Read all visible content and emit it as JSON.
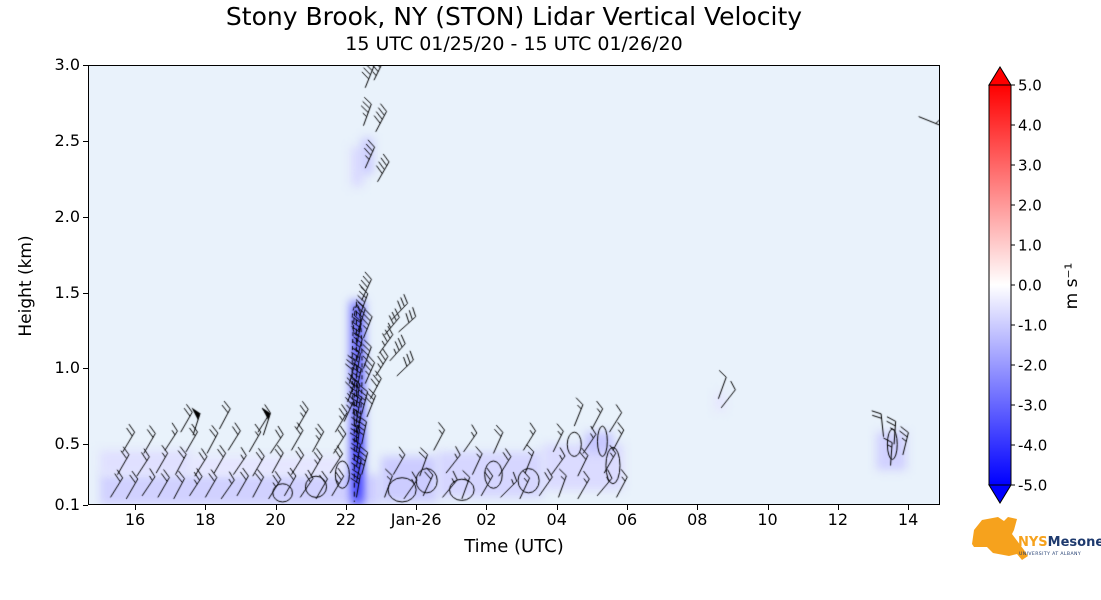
{
  "title": "Stony Brook, NY (STON) Lidar Vertical Velocity",
  "subtitle": "15 UTC 01/25/20 - 15 UTC 01/26/20",
  "chart_data": {
    "type": "heatmap",
    "title": "Stony Brook, NY (STON) Lidar Vertical Velocity",
    "subtitle": "15 UTC 01/25/20 - 15 UTC 01/26/20",
    "xlabel": "Time (UTC)",
    "ylabel": "Height (km)",
    "x_tick_hours": [
      1,
      3,
      5,
      7,
      9,
      11,
      13,
      15,
      17,
      19,
      21,
      23
    ],
    "x_tick_labels": [
      "16",
      "18",
      "20",
      "22",
      "Jan-26",
      "02",
      "04",
      "06",
      "08",
      "10",
      "12",
      "14"
    ],
    "xlim_hours_after_start": [
      -0.34,
      23.9
    ],
    "y_ticks": [
      0.1,
      0.5,
      1.0,
      1.5,
      2.0,
      2.5,
      3.0
    ],
    "y_tick_labels": [
      "0.1",
      "0.5",
      "1.0",
      "1.5",
      "2.0",
      "2.5",
      "3.0"
    ],
    "ylim": [
      0.1,
      3.0
    ],
    "plot_bg_color": "#e9f2fb",
    "background_velocity_ms": -0.3,
    "colorbar": {
      "label": "m s⁻¹",
      "ticks": [
        5,
        4,
        3,
        2,
        1,
        0,
        -1,
        -2,
        -3,
        -4,
        -5
      ],
      "tick_labels": [
        "5.0",
        "4.0",
        "3.0",
        "2.0",
        "1.0",
        "0.0",
        "-1.0",
        "-2.0",
        "-3.0",
        "-4.0",
        "-5.0"
      ],
      "min": -5.0,
      "max": 5.0,
      "colors": {
        "positive": "#ff0000",
        "zero": "#ffffff",
        "negative": "#0000ff"
      }
    },
    "velocity_patches": {
      "format": [
        "t_start_hours_after_15utc",
        "t_end",
        "height_start_km",
        "height_end_km",
        "velocity_ms"
      ],
      "regions": [
        [
          0.0,
          8.0,
          0.1,
          0.3,
          -0.9
        ],
        [
          0.0,
          2.6,
          0.3,
          0.46,
          -0.6
        ],
        [
          2.6,
          7.0,
          0.3,
          0.42,
          -0.5
        ],
        [
          7.1,
          7.55,
          0.1,
          1.45,
          -2.0
        ],
        [
          7.25,
          7.42,
          0.1,
          1.4,
          -3.5
        ],
        [
          7.28,
          7.38,
          0.15,
          0.6,
          -4.8
        ],
        [
          7.15,
          7.5,
          2.2,
          2.46,
          -0.7
        ],
        [
          7.45,
          7.78,
          2.28,
          2.52,
          -1.0
        ],
        [
          8.0,
          9.6,
          0.12,
          0.42,
          -1.0
        ],
        [
          9.6,
          12.6,
          0.15,
          0.45,
          -0.8
        ],
        [
          12.6,
          14.9,
          0.2,
          0.5,
          -0.7
        ],
        [
          13.8,
          14.6,
          0.44,
          0.58,
          -1.1
        ],
        [
          17.5,
          17.8,
          0.72,
          0.84,
          -0.5
        ],
        [
          22.1,
          22.95,
          0.33,
          0.58,
          -0.9
        ]
      ]
    },
    "wind_barbs": {
      "format": [
        "t_hours_after_15utc",
        "height_km",
        "speed_kt",
        "staff_angle_deg_cw_from_up"
      ],
      "points": [
        [
          0.3,
          0.15,
          20,
          32
        ],
        [
          0.75,
          0.14,
          20,
          30
        ],
        [
          1.2,
          0.16,
          15,
          34
        ],
        [
          1.65,
          0.15,
          20,
          30
        ],
        [
          2.1,
          0.14,
          20,
          28
        ],
        [
          2.55,
          0.16,
          25,
          33
        ],
        [
          3.0,
          0.15,
          20,
          30
        ],
        [
          3.45,
          0.14,
          15,
          35
        ],
        [
          3.9,
          0.16,
          20,
          30
        ],
        [
          4.35,
          0.15,
          20,
          28
        ],
        [
          4.8,
          0.14,
          25,
          32
        ],
        [
          5.25,
          0.16,
          20,
          30
        ],
        [
          5.7,
          0.15,
          20,
          34
        ],
        [
          6.15,
          0.14,
          20,
          30
        ],
        [
          6.6,
          0.16,
          25,
          31
        ],
        [
          0.5,
          0.3,
          20,
          30
        ],
        [
          1.05,
          0.29,
          20,
          33
        ],
        [
          1.6,
          0.31,
          15,
          30
        ],
        [
          2.15,
          0.3,
          20,
          28
        ],
        [
          2.7,
          0.29,
          20,
          32
        ],
        [
          3.25,
          0.31,
          20,
          30
        ],
        [
          3.8,
          0.3,
          15,
          34
        ],
        [
          4.35,
          0.29,
          20,
          30
        ],
        [
          4.9,
          0.31,
          20,
          29
        ],
        [
          5.45,
          0.3,
          20,
          32
        ],
        [
          6.0,
          0.29,
          25,
          30
        ],
        [
          6.55,
          0.31,
          20,
          33
        ],
        [
          0.65,
          0.45,
          20,
          31
        ],
        [
          1.25,
          0.44,
          20,
          30
        ],
        [
          1.85,
          0.46,
          15,
          33
        ],
        [
          2.45,
          0.45,
          20,
          30
        ],
        [
          3.05,
          0.44,
          20,
          28
        ],
        [
          3.65,
          0.46,
          20,
          32
        ],
        [
          4.25,
          0.45,
          15,
          30
        ],
        [
          4.85,
          0.44,
          20,
          34
        ],
        [
          5.45,
          0.46,
          20,
          30
        ],
        [
          6.05,
          0.45,
          25,
          29
        ],
        [
          6.65,
          0.44,
          20,
          32
        ],
        [
          2.3,
          0.58,
          20,
          30
        ],
        [
          3.4,
          0.6,
          20,
          28
        ],
        [
          4.5,
          0.58,
          20,
          32
        ],
        [
          5.6,
          0.6,
          25,
          30
        ],
        [
          6.7,
          0.58,
          25,
          31
        ],
        [
          2.65,
          0.56,
          50,
          18
        ],
        [
          4.65,
          0.56,
          50,
          18
        ],
        [
          6.95,
          0.65,
          25,
          25
        ],
        [
          7.05,
          0.78,
          30,
          20
        ],
        [
          7.1,
          0.9,
          30,
          15
        ],
        [
          7.3,
          0.15,
          30,
          10
        ],
        [
          7.3,
          0.25,
          30,
          12
        ],
        [
          7.3,
          0.35,
          35,
          10
        ],
        [
          7.3,
          0.45,
          35,
          8
        ],
        [
          7.3,
          0.55,
          35,
          12
        ],
        [
          7.3,
          0.65,
          35,
          10
        ],
        [
          7.3,
          0.75,
          40,
          8
        ],
        [
          7.3,
          0.85,
          40,
          12
        ],
        [
          7.3,
          0.95,
          35,
          10
        ],
        [
          7.3,
          1.05,
          35,
          15
        ],
        [
          7.3,
          1.15,
          35,
          12
        ],
        [
          7.35,
          1.25,
          40,
          18
        ],
        [
          7.4,
          1.35,
          40,
          20
        ],
        [
          7.45,
          1.45,
          40,
          25
        ],
        [
          7.45,
          0.3,
          35,
          15
        ],
        [
          7.45,
          0.5,
          35,
          12
        ],
        [
          7.45,
          0.7,
          35,
          15
        ],
        [
          7.5,
          1.0,
          35,
          20
        ],
        [
          7.5,
          1.2,
          35,
          22
        ],
        [
          7.55,
          0.9,
          35,
          24
        ],
        [
          7.7,
          0.8,
          30,
          28
        ],
        [
          7.85,
          0.95,
          35,
          32
        ],
        [
          7.6,
          0.68,
          30,
          22
        ],
        [
          7.95,
          1.1,
          35,
          36
        ],
        [
          8.1,
          1.22,
          35,
          40
        ],
        [
          8.3,
          1.32,
          30,
          44
        ],
        [
          8.5,
          1.24,
          30,
          48
        ],
        [
          8.25,
          1.05,
          35,
          42
        ],
        [
          8.45,
          0.95,
          30,
          46
        ],
        [
          7.55,
          2.85,
          40,
          22
        ],
        [
          7.8,
          2.9,
          45,
          26
        ],
        [
          7.5,
          2.6,
          35,
          20
        ],
        [
          7.85,
          2.56,
          40,
          28
        ],
        [
          7.55,
          2.32,
          35,
          24
        ],
        [
          7.9,
          2.23,
          40,
          30
        ],
        [
          8.1,
          0.15,
          15,
          20
        ],
        [
          8.65,
          0.14,
          15,
          35
        ],
        [
          9.2,
          0.16,
          20,
          25
        ],
        [
          9.75,
          0.15,
          15,
          40
        ],
        [
          10.3,
          0.14,
          15,
          20
        ],
        [
          10.85,
          0.16,
          20,
          30
        ],
        [
          11.4,
          0.15,
          15,
          45
        ],
        [
          11.95,
          0.14,
          15,
          25
        ],
        [
          12.5,
          0.16,
          20,
          35
        ],
        [
          13.05,
          0.15,
          15,
          20
        ],
        [
          13.6,
          0.14,
          15,
          30
        ],
        [
          14.15,
          0.16,
          15,
          40
        ],
        [
          14.7,
          0.15,
          15,
          28
        ],
        [
          8.35,
          0.3,
          15,
          30
        ],
        [
          9.1,
          0.29,
          20,
          20
        ],
        [
          9.85,
          0.31,
          15,
          38
        ],
        [
          10.6,
          0.3,
          15,
          25
        ],
        [
          11.35,
          0.29,
          20,
          32
        ],
        [
          12.1,
          0.31,
          15,
          22
        ],
        [
          12.85,
          0.3,
          15,
          36
        ],
        [
          13.6,
          0.29,
          20,
          26
        ],
        [
          14.35,
          0.31,
          15,
          30
        ],
        [
          9.5,
          0.46,
          15,
          28
        ],
        [
          10.35,
          0.45,
          15,
          35
        ],
        [
          11.2,
          0.44,
          20,
          24
        ],
        [
          12.05,
          0.46,
          15,
          32
        ],
        [
          12.9,
          0.45,
          15,
          26
        ],
        [
          13.75,
          0.44,
          15,
          34
        ],
        [
          14.6,
          0.46,
          15,
          28
        ],
        [
          13.5,
          0.62,
          15,
          22
        ],
        [
          14.0,
          0.6,
          15,
          28
        ],
        [
          14.5,
          0.58,
          10,
          32
        ],
        [
          17.6,
          0.8,
          10,
          20
        ],
        [
          17.68,
          0.74,
          10,
          38
        ],
        [
          22.3,
          0.55,
          20,
          -6
        ],
        [
          22.6,
          0.5,
          25,
          4
        ],
        [
          22.85,
          0.43,
          25,
          14
        ],
        [
          22.5,
          0.36,
          15,
          4
        ],
        [
          23.3,
          2.66,
          5,
          112
        ]
      ]
    },
    "contours": {
      "ellipses_format": [
        "t_center",
        "h_center_km",
        "radius_t_hours",
        "radius_h_km",
        "dashed"
      ],
      "ellipses": [
        [
          5.2,
          0.18,
          0.28,
          0.06,
          0
        ],
        [
          6.15,
          0.22,
          0.3,
          0.07,
          0
        ],
        [
          6.9,
          0.3,
          0.2,
          0.09,
          0
        ],
        [
          7.32,
          1.0,
          0.14,
          0.42,
          1
        ],
        [
          7.3,
          1.32,
          0.12,
          0.1,
          1
        ],
        [
          8.6,
          0.2,
          0.4,
          0.08,
          0
        ],
        [
          9.3,
          0.26,
          0.3,
          0.08,
          0
        ],
        [
          10.3,
          0.2,
          0.35,
          0.07,
          0
        ],
        [
          11.2,
          0.3,
          0.25,
          0.09,
          0
        ],
        [
          12.2,
          0.26,
          0.3,
          0.08,
          0
        ],
        [
          13.5,
          0.5,
          0.2,
          0.08,
          0
        ],
        [
          14.3,
          0.52,
          0.14,
          0.1,
          0
        ],
        [
          14.6,
          0.36,
          0.2,
          0.12,
          0
        ],
        [
          22.55,
          0.5,
          0.14,
          0.1,
          0
        ]
      ],
      "dashed_vlines": [
        [
          7.3,
          0.5,
          1.44
        ],
        [
          7.24,
          0.12,
          0.9
        ]
      ]
    }
  },
  "branding": {
    "nys": "NYS",
    "mesonet": "Mesonet",
    "tagline": "UNIVERSITY AT ALBANY",
    "orange": "#F6A21D",
    "navy": "#1E3A6E"
  }
}
